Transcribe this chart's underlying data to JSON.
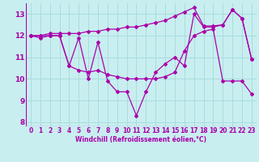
{
  "xlabel": "Windchill (Refroidissement éolien,°C)",
  "ylabel": "",
  "bg_color": "#c8eef0",
  "line_color": "#aa00aa",
  "grid_color": "#aadddd",
  "ylim": [
    7.8,
    13.5
  ],
  "xlim": [
    -0.5,
    23.5
  ],
  "yticks": [
    8,
    9,
    10,
    11,
    12,
    13
  ],
  "xticks": [
    0,
    1,
    2,
    3,
    4,
    5,
    6,
    7,
    8,
    9,
    10,
    11,
    12,
    13,
    14,
    15,
    16,
    17,
    18,
    19,
    20,
    21,
    22,
    23
  ],
  "series": [
    [
      12.0,
      11.9,
      12.0,
      12.0,
      10.6,
      11.9,
      10.0,
      11.7,
      9.9,
      9.4,
      9.4,
      8.3,
      9.4,
      10.3,
      10.7,
      11.0,
      10.6,
      13.0,
      12.4,
      12.4,
      12.5,
      13.2,
      12.8,
      10.9
    ],
    [
      12.0,
      12.0,
      12.0,
      12.0,
      10.6,
      10.4,
      10.3,
      10.4,
      10.2,
      10.1,
      10.0,
      10.0,
      10.0,
      10.0,
      10.1,
      10.3,
      11.3,
      12.0,
      12.2,
      12.3,
      9.9,
      9.9,
      9.9,
      9.3
    ],
    [
      12.0,
      12.0,
      12.1,
      12.1,
      12.1,
      12.1,
      12.2,
      12.2,
      12.3,
      12.3,
      12.4,
      12.4,
      12.5,
      12.6,
      12.7,
      12.9,
      13.1,
      13.3,
      12.45,
      12.45,
      12.5,
      13.2,
      12.8,
      10.9
    ]
  ]
}
